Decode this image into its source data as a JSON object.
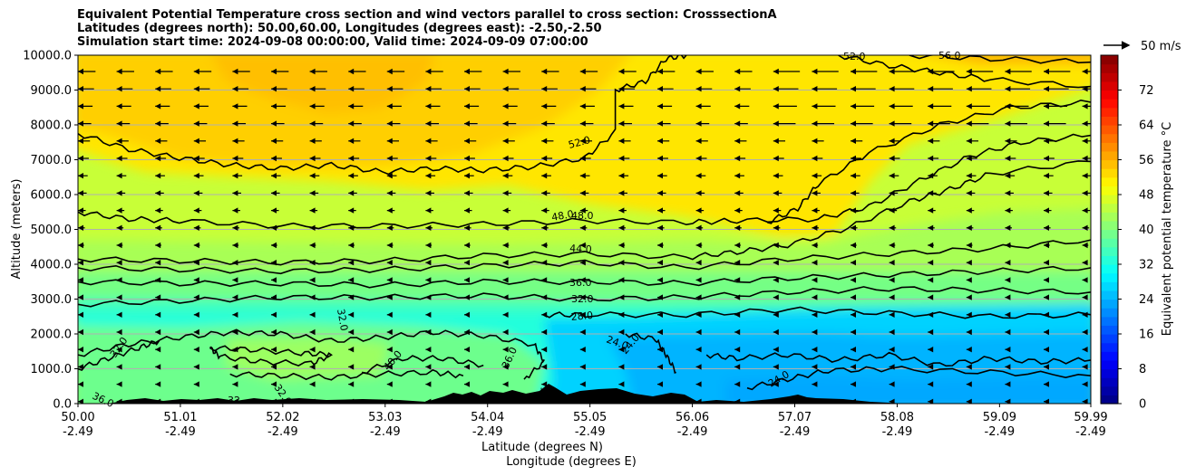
{
  "chart_data": {
    "type": "heatmap",
    "title_lines": [
      "Equivalent Potential Temperature cross section and wind vectors parallel to cross section: CrosssectionA",
      "Latitudes (degrees north): 50.00,60.00, Longitudes (degrees east): -2.50,-2.50",
      "Simulation start time: 2024-09-08 00:00:00, Valid time: 2024-09-09 07:00:00"
    ],
    "xlabel": "Latitude (degrees N)",
    "xlabel2": "Longitude (degrees E)",
    "ylabel": "Altitude (meters)",
    "xlim": [
      50.0,
      59.99
    ],
    "ylim": [
      0,
      10000
    ],
    "x_ticks": [
      50.0,
      51.01,
      52.02,
      53.03,
      54.04,
      55.05,
      56.06,
      57.07,
      58.08,
      59.09,
      59.99
    ],
    "x_tick_labels": [
      "50.00",
      "51.01",
      "52.02",
      "53.03",
      "54.04",
      "55.05",
      "56.06",
      "57.07",
      "58.08",
      "59.09",
      "59.99"
    ],
    "x_tick_labels2": [
      "-2.49",
      "-2.49",
      "-2.49",
      "-2.49",
      "-2.49",
      "-2.49",
      "-2.49",
      "-2.49",
      "-2.49",
      "-2.49",
      "-2.49"
    ],
    "y_ticks": [
      0,
      1000,
      2000,
      3000,
      4000,
      5000,
      6000,
      7000,
      8000,
      9000,
      10000
    ],
    "y_tick_labels": [
      "0.0",
      "1000.0",
      "2000.0",
      "3000.0",
      "4000.0",
      "5000.0",
      "6000.0",
      "7000.0",
      "8000.0",
      "9000.0",
      "10000.0"
    ],
    "grid": "horizontal",
    "colorbar": {
      "label": "Equivalent potential temperature °C",
      "range": [
        0,
        80
      ],
      "ticks": [
        0,
        8,
        16,
        24,
        32,
        40,
        48,
        56,
        64,
        72
      ],
      "tick_labels": [
        "0",
        "8",
        "16",
        "24",
        "32",
        "40",
        "48",
        "56",
        "64",
        "72"
      ],
      "colormap": "jet",
      "levels": 40
    },
    "contour_labels": [
      "56.0",
      "52.0",
      "52.0",
      "48.0",
      "48.0",
      "44.0",
      "36.0",
      "32.0",
      "32.0",
      "28.0",
      "24.0",
      "24.0",
      "24.0",
      "36.0",
      "40.0",
      "32.0",
      "32.0",
      "36.0",
      "32",
      "3"
    ],
    "contours": [
      {
        "level": 52,
        "points": [
          [
            50.0,
            7750
          ],
          [
            50.5,
            7300
          ],
          [
            51.0,
            7050
          ],
          [
            51.5,
            6850
          ],
          [
            52.0,
            6750
          ],
          [
            52.5,
            6850
          ],
          [
            53.0,
            6650
          ],
          [
            53.5,
            6750
          ],
          [
            54.0,
            6700
          ],
          [
            54.5,
            6800
          ],
          [
            55.0,
            7050
          ],
          [
            55.3,
            7800
          ],
          [
            55.3,
            9000
          ],
          [
            55.6,
            9250
          ],
          [
            55.8,
            9900
          ],
          [
            56.0,
            10000
          ]
        ]
      },
      {
        "level": 52,
        "points": [
          [
            57.5,
            10000
          ],
          [
            58.0,
            9700
          ],
          [
            58.5,
            9500
          ],
          [
            59.0,
            9300
          ],
          [
            59.99,
            9100
          ]
        ]
      },
      {
        "level": 56,
        "points": [
          [
            58.2,
            10000
          ],
          [
            59.0,
            9900
          ],
          [
            59.99,
            9800
          ]
        ]
      },
      {
        "level": 48,
        "points": [
          [
            50.0,
            5500
          ],
          [
            50.5,
            5300
          ],
          [
            51.0,
            5250
          ],
          [
            52.0,
            5100
          ],
          [
            53.0,
            5100
          ],
          [
            54.0,
            5150
          ],
          [
            55.0,
            5250
          ],
          [
            56.0,
            5200
          ],
          [
            56.5,
            5250
          ],
          [
            57.3,
            5300
          ],
          [
            57.8,
            5650
          ],
          [
            58.3,
            6400
          ],
          [
            58.8,
            7100
          ],
          [
            59.3,
            7500
          ],
          [
            59.99,
            7700
          ]
        ]
      },
      {
        "level": 48,
        "points": [
          [
            56.8,
            5200
          ],
          [
            57.1,
            5600
          ],
          [
            57.3,
            6300
          ],
          [
            57.8,
            7200
          ],
          [
            58.5,
            8000
          ],
          [
            59.2,
            8500
          ],
          [
            59.99,
            8650
          ]
        ]
      },
      {
        "level": 44,
        "points": [
          [
            50.0,
            4150
          ],
          [
            51.0,
            4100
          ],
          [
            52.0,
            4050
          ],
          [
            53.0,
            4100
          ],
          [
            54.0,
            4250
          ],
          [
            55.0,
            4300
          ],
          [
            56.0,
            4200
          ],
          [
            56.5,
            4350
          ],
          [
            57.0,
            4550
          ],
          [
            57.6,
            5050
          ],
          [
            58.2,
            5800
          ],
          [
            58.6,
            6150
          ],
          [
            59.0,
            6600
          ],
          [
            59.99,
            6950
          ]
        ]
      },
      {
        "level": 40,
        "points": [
          [
            50.0,
            3900
          ],
          [
            51.0,
            3850
          ],
          [
            52.0,
            3800
          ],
          [
            53.0,
            3850
          ],
          [
            54.0,
            3950
          ],
          [
            55.0,
            4050
          ],
          [
            56.0,
            3900
          ],
          [
            57.0,
            4150
          ],
          [
            58.0,
            4300
          ],
          [
            59.0,
            4450
          ],
          [
            59.99,
            4700
          ]
        ]
      },
      {
        "level": 36,
        "points": [
          [
            50.0,
            3500
          ],
          [
            51.0,
            3450
          ],
          [
            52.0,
            3450
          ],
          [
            53.0,
            3400
          ],
          [
            54.0,
            3500
          ],
          [
            55.0,
            3500
          ],
          [
            56.0,
            3450
          ],
          [
            57.0,
            3600
          ],
          [
            58.0,
            3700
          ],
          [
            59.0,
            3800
          ],
          [
            59.99,
            3900
          ]
        ]
      },
      {
        "level": 32,
        "points": [
          [
            50.0,
            2850
          ],
          [
            51.0,
            2950
          ],
          [
            52.0,
            3050
          ],
          [
            53.0,
            3050
          ],
          [
            54.0,
            3100
          ],
          [
            55.0,
            3000
          ],
          [
            56.0,
            3050
          ],
          [
            57.0,
            3200
          ],
          [
            58.0,
            3300
          ],
          [
            59.0,
            3250
          ],
          [
            59.99,
            3200
          ]
        ]
      },
      {
        "level": 28,
        "points": [
          [
            54.6,
            2550
          ],
          [
            55.0,
            2550
          ],
          [
            56.0,
            2550
          ],
          [
            57.0,
            2700
          ],
          [
            58.0,
            2600
          ],
          [
            59.0,
            2500
          ],
          [
            59.99,
            2550
          ]
        ]
      },
      {
        "level": 24,
        "points": [
          [
            56.2,
            1400
          ],
          [
            56.5,
            1300
          ],
          [
            57.0,
            1400
          ],
          [
            57.5,
            1250
          ],
          [
            58.0,
            1400
          ],
          [
            58.5,
            1100
          ],
          [
            59.0,
            1300
          ],
          [
            59.5,
            1200
          ],
          [
            59.99,
            1250
          ]
        ]
      },
      {
        "level": 24,
        "points": [
          [
            56.6,
            450
          ],
          [
            57.0,
            700
          ],
          [
            57.4,
            950
          ],
          [
            58.0,
            1000
          ],
          [
            59.0,
            900
          ],
          [
            59.99,
            800
          ]
        ]
      },
      {
        "level": 24,
        "points": [
          [
            55.4,
            2000
          ],
          [
            55.7,
            1850
          ],
          [
            55.8,
            1400
          ],
          [
            55.9,
            900
          ]
        ]
      },
      {
        "level": 36,
        "points": [
          [
            50.0,
            1400
          ],
          [
            50.5,
            1700
          ],
          [
            51.0,
            1900
          ],
          [
            51.5,
            2050
          ],
          [
            52.0,
            2000
          ],
          [
            52.5,
            1800
          ],
          [
            53.0,
            1900
          ],
          [
            53.5,
            2050
          ],
          [
            54.0,
            1950
          ],
          [
            54.5,
            1700
          ],
          [
            54.6,
            1200
          ],
          [
            54.4,
            700
          ]
        ]
      },
      {
        "level": 40,
        "points": [
          [
            52.8,
            900
          ],
          [
            53.2,
            1300
          ],
          [
            53.6,
            1300
          ],
          [
            54.0,
            1100
          ]
        ]
      },
      {
        "level": 32,
        "points": [
          [
            50.0,
            1000
          ],
          [
            50.3,
            1300
          ],
          [
            50.6,
            1600
          ],
          [
            50.8,
            1800
          ]
        ]
      },
      {
        "level": 36,
        "points": [
          [
            51.3,
            1600
          ],
          [
            51.7,
            1550
          ],
          [
            52.2,
            1450
          ],
          [
            52.5,
            1400
          ],
          [
            52.3,
            1150
          ],
          [
            51.8,
            1200
          ],
          [
            51.4,
            1350
          ],
          [
            51.3,
            1600
          ]
        ]
      },
      {
        "level": 36,
        "points": [
          [
            51.5,
            850
          ],
          [
            52.0,
            800
          ],
          [
            52.5,
            750
          ],
          [
            53.0,
            850
          ],
          [
            53.5,
            900
          ],
          [
            53.8,
            800
          ]
        ]
      }
    ]
  },
  "wind_legend": {
    "label": "50 m/s"
  }
}
